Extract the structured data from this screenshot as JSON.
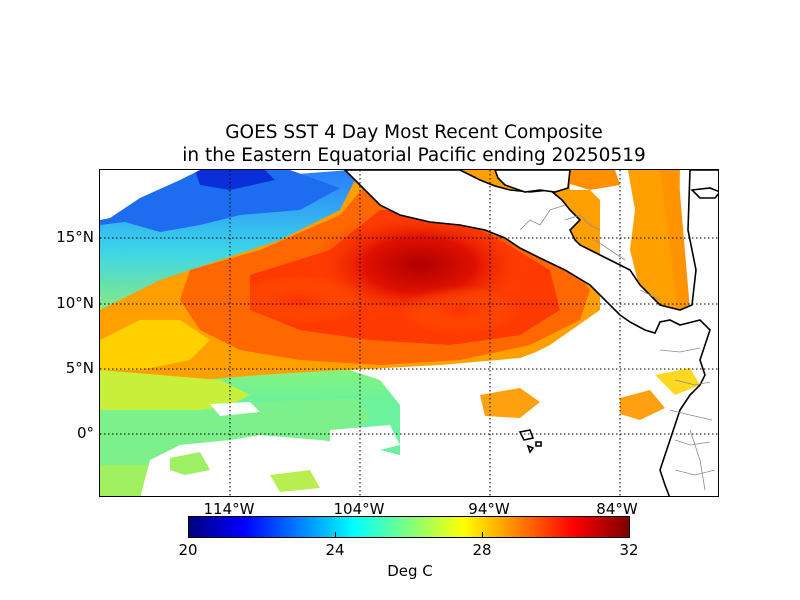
{
  "title": {
    "line1": "GOES SST 4 Day Most Recent Composite",
    "line2": "in the Eastern Equatorial Pacific ending 20250519"
  },
  "map": {
    "lat_labels": [
      "15°N",
      "10°N",
      "5°N",
      "0°"
    ],
    "lon_labels": [
      "114°W",
      "104°W",
      "94°W",
      "84°W"
    ],
    "extent": {
      "lon_min": -124,
      "lon_max": -76.5,
      "lat_min": -5,
      "lat_max": 20.2
    },
    "gridlines": {
      "lats": [
        15,
        10,
        5,
        0
      ],
      "lons": [
        -114,
        -104,
        -94,
        -84
      ]
    }
  },
  "colorbar": {
    "label": "Deg C",
    "ticks": [
      "20",
      "24",
      "28",
      "32"
    ],
    "min": 20,
    "max": 32,
    "colormap": [
      "#00007f",
      "#0000ff",
      "#007fff",
      "#00ffff",
      "#7fff7f",
      "#ffff00",
      "#ff7f00",
      "#ff0000",
      "#7f0000"
    ]
  },
  "colors": {
    "land": "#ffffff",
    "coast": "#000000",
    "borders": "#8c8c8c"
  }
}
